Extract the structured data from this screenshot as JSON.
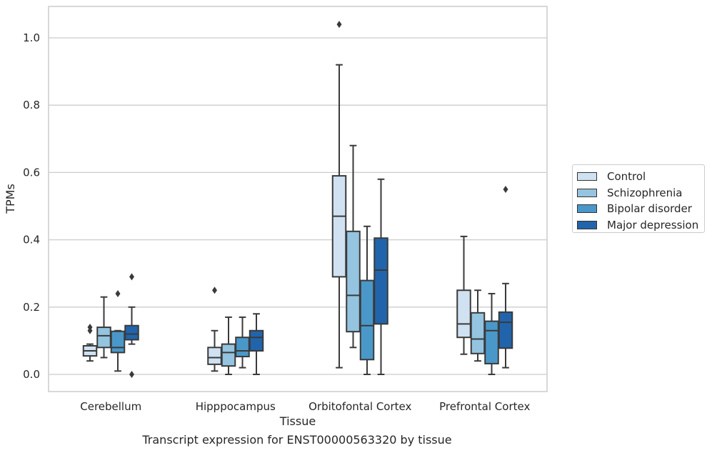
{
  "chart_data": {
    "type": "box",
    "xlabel": "Tissue",
    "ylabel": "TPMs",
    "ylim": [
      -0.05,
      1.09
    ],
    "yticks": [
      0.0,
      0.2,
      0.4,
      0.6,
      0.8,
      1.0
    ],
    "ytick_labels": [
      "0.0",
      "0.2",
      "0.4",
      "0.6",
      "0.8",
      "1.0"
    ],
    "grid": "horizontal",
    "legend_position": "right",
    "categories": [
      "Cerebellum",
      "Hipppocampus",
      "Orbitofontal Cortex",
      "Prefrontal Cortex"
    ],
    "series": [
      {
        "name": "Control",
        "color": "#d0e1f2",
        "boxes": [
          {
            "whisker_low": 0.04,
            "q1": 0.055,
            "median": 0.07,
            "q3": 0.085,
            "whisker_high": 0.09,
            "outliers": [
              0.13,
              0.14
            ]
          },
          {
            "whisker_low": 0.01,
            "q1": 0.03,
            "median": 0.05,
            "q3": 0.08,
            "whisker_high": 0.13,
            "outliers": [
              0.25
            ]
          },
          {
            "whisker_low": 0.02,
            "q1": 0.29,
            "median": 0.47,
            "q3": 0.59,
            "whisker_high": 0.92,
            "outliers": [
              1.04
            ]
          },
          {
            "whisker_low": 0.06,
            "q1": 0.11,
            "median": 0.15,
            "q3": 0.25,
            "whisker_high": 0.41,
            "outliers": []
          }
        ]
      },
      {
        "name": "Schizophrenia",
        "color": "#94c4df",
        "boxes": [
          {
            "whisker_low": 0.05,
            "q1": 0.08,
            "median": 0.115,
            "q3": 0.14,
            "whisker_high": 0.23,
            "outliers": []
          },
          {
            "whisker_low": 0.0,
            "q1": 0.025,
            "median": 0.065,
            "q3": 0.09,
            "whisker_high": 0.17,
            "outliers": []
          },
          {
            "whisker_low": 0.08,
            "q1": 0.127,
            "median": 0.235,
            "q3": 0.425,
            "whisker_high": 0.68,
            "outliers": []
          },
          {
            "whisker_low": 0.04,
            "q1": 0.062,
            "median": 0.105,
            "q3": 0.183,
            "whisker_high": 0.25,
            "outliers": []
          }
        ]
      },
      {
        "name": "Bipolar disorder",
        "color": "#4a98c9",
        "boxes": [
          {
            "whisker_low": 0.01,
            "q1": 0.065,
            "median": 0.08,
            "q3": 0.128,
            "whisker_high": 0.13,
            "outliers": [
              0.24
            ]
          },
          {
            "whisker_low": 0.02,
            "q1": 0.053,
            "median": 0.07,
            "q3": 0.11,
            "whisker_high": 0.17,
            "outliers": []
          },
          {
            "whisker_low": 0.0,
            "q1": 0.044,
            "median": 0.145,
            "q3": 0.279,
            "whisker_high": 0.44,
            "outliers": []
          },
          {
            "whisker_low": 0.0,
            "q1": 0.032,
            "median": 0.13,
            "q3": 0.158,
            "whisker_high": 0.24,
            "outliers": []
          }
        ]
      },
      {
        "name": "Major depression",
        "color": "#2164ab",
        "boxes": [
          {
            "whisker_low": 0.09,
            "q1": 0.103,
            "median": 0.12,
            "q3": 0.145,
            "whisker_high": 0.2,
            "outliers": [
              0.29,
              0.0
            ]
          },
          {
            "whisker_low": 0.0,
            "q1": 0.07,
            "median": 0.11,
            "q3": 0.13,
            "whisker_high": 0.18,
            "outliers": []
          },
          {
            "whisker_low": 0.0,
            "q1": 0.15,
            "median": 0.31,
            "q3": 0.405,
            "whisker_high": 0.58,
            "outliers": []
          },
          {
            "whisker_low": 0.02,
            "q1": 0.078,
            "median": 0.155,
            "q3": 0.185,
            "whisker_high": 0.27,
            "outliers": [
              0.55
            ]
          }
        ]
      }
    ],
    "caption": "Transcript expression for ENST00000563320 by tissue"
  }
}
